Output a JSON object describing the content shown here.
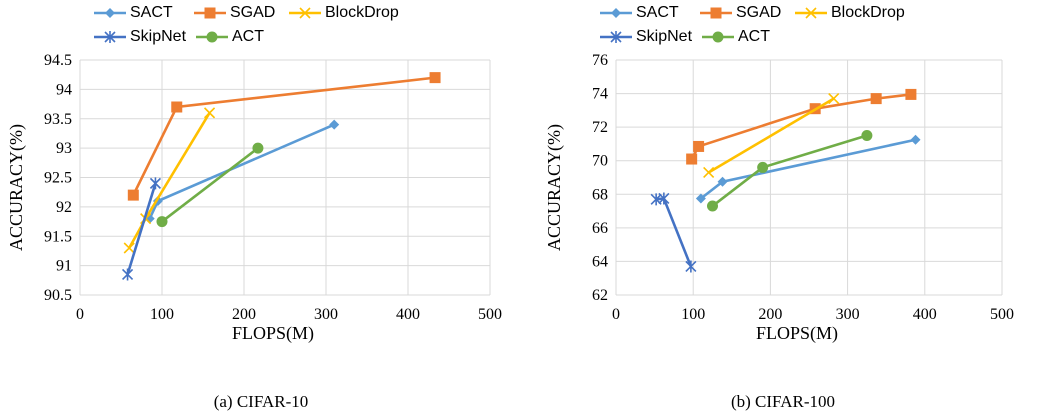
{
  "legend_order": [
    "SACT",
    "SGAD",
    "BlockDrop",
    "SkipNet",
    "ACT"
  ],
  "series_style": {
    "SACT": {
      "color": "#5B9BD5",
      "marker": "diamond"
    },
    "SGAD": {
      "color": "#ED7D31",
      "marker": "square"
    },
    "BlockDrop": {
      "color": "#FFC000",
      "marker": "x"
    },
    "SkipNet": {
      "color": "#4472C4",
      "marker": "star"
    },
    "ACT": {
      "color": "#70AD47",
      "marker": "circle"
    }
  },
  "chart_data": [
    {
      "type": "line",
      "caption": "(a) CIFAR-10",
      "xlabel": "FLOPS(M)",
      "ylabel": "ACCURACY(%)",
      "xlim": [
        0,
        500
      ],
      "ylim": [
        90.5,
        94.5
      ],
      "xticks": [
        0,
        100,
        200,
        300,
        400,
        500
      ],
      "yticks": [
        90.5,
        91,
        91.5,
        92,
        92.5,
        93,
        93.5,
        94,
        94.5
      ],
      "ytick_labels": [
        "90.5",
        "91",
        "91.5",
        "92",
        "92.5",
        "93",
        "93.5",
        "94",
        "94.5"
      ],
      "grid": true,
      "legend": "top",
      "series": [
        {
          "name": "SACT",
          "points": [
            [
              85,
              91.8
            ],
            [
              95,
              92.1
            ],
            [
              310,
              93.4
            ]
          ]
        },
        {
          "name": "SGAD",
          "points": [
            [
              65,
              92.2
            ],
            [
              118,
              93.7
            ],
            [
              433,
              94.2
            ]
          ]
        },
        {
          "name": "BlockDrop",
          "points": [
            [
              60,
              91.3
            ],
            [
              80,
              91.8
            ],
            [
              158,
              93.6
            ]
          ]
        },
        {
          "name": "SkipNet",
          "points": [
            [
              58,
              90.85
            ],
            [
              92,
              92.4
            ]
          ]
        },
        {
          "name": "ACT",
          "points": [
            [
              100,
              91.75
            ],
            [
              217,
              93.0
            ]
          ]
        }
      ]
    },
    {
      "type": "line",
      "caption": "(b) CIFAR-100",
      "xlabel": "FLOPS(M)",
      "ylabel": "ACCURACY(%)",
      "xlim": [
        0,
        500
      ],
      "ylim": [
        62,
        76
      ],
      "xticks": [
        0,
        100,
        200,
        300,
        400,
        500
      ],
      "yticks": [
        62,
        64,
        66,
        68,
        70,
        72,
        74,
        76
      ],
      "ytick_labels": [
        "62",
        "64",
        "66",
        "68",
        "70",
        "72",
        "74",
        "76"
      ],
      "grid": true,
      "legend": "top",
      "series": [
        {
          "name": "SACT",
          "points": [
            [
              110,
              67.75
            ],
            [
              138,
              68.75
            ],
            [
              388,
              71.25
            ]
          ]
        },
        {
          "name": "SGAD",
          "points": [
            [
              98,
              70.1
            ],
            [
              107,
              70.85
            ],
            [
              258,
              73.1
            ],
            [
              337,
              73.7
            ],
            [
              382,
              73.95
            ]
          ]
        },
        {
          "name": "BlockDrop",
          "points": [
            [
              120,
              69.3
            ],
            [
              282,
              73.7
            ]
          ]
        },
        {
          "name": "SkipNet",
          "points": [
            [
              52,
              67.7
            ],
            [
              62,
              67.75
            ],
            [
              97,
              63.7
            ]
          ]
        },
        {
          "name": "ACT",
          "points": [
            [
              125,
              67.3
            ],
            [
              190,
              69.6
            ],
            [
              325,
              71.5
            ]
          ]
        }
      ]
    }
  ]
}
